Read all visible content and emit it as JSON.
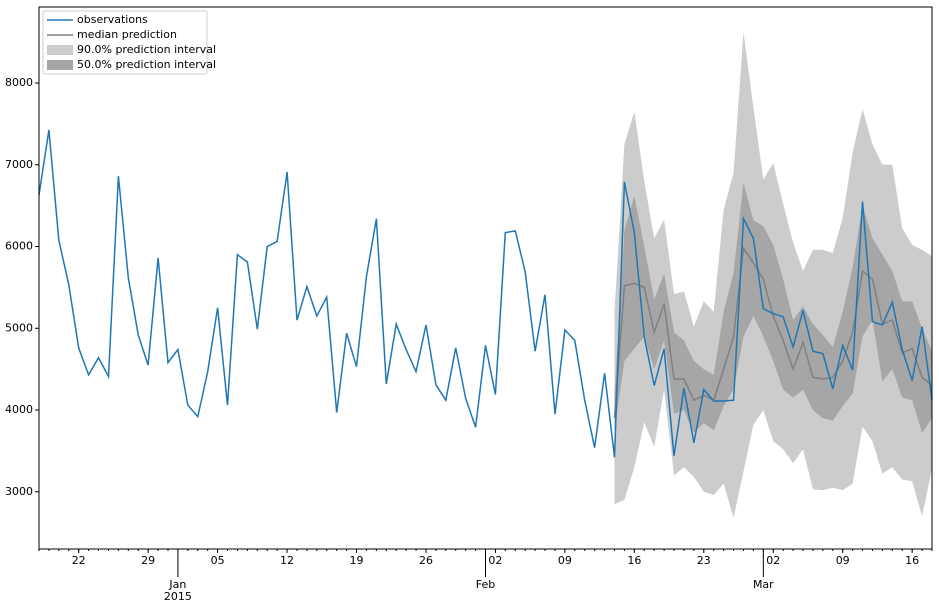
{
  "chart_data": {
    "type": "line",
    "x": [
      "2014-12-18",
      "2014-12-19",
      "2014-12-20",
      "2014-12-21",
      "2014-12-22",
      "2014-12-23",
      "2014-12-24",
      "2014-12-25",
      "2014-12-26",
      "2014-12-27",
      "2014-12-28",
      "2014-12-29",
      "2014-12-30",
      "2014-12-31",
      "2015-01-01",
      "2015-01-02",
      "2015-01-03",
      "2015-01-04",
      "2015-01-05",
      "2015-01-06",
      "2015-01-07",
      "2015-01-08",
      "2015-01-09",
      "2015-01-10",
      "2015-01-11",
      "2015-01-12",
      "2015-01-13",
      "2015-01-14",
      "2015-01-15",
      "2015-01-16",
      "2015-01-17",
      "2015-01-18",
      "2015-01-19",
      "2015-01-20",
      "2015-01-21",
      "2015-01-22",
      "2015-01-23",
      "2015-01-24",
      "2015-01-25",
      "2015-01-26",
      "2015-01-27",
      "2015-01-28",
      "2015-01-29",
      "2015-01-30",
      "2015-01-31",
      "2015-02-01",
      "2015-02-02",
      "2015-02-03",
      "2015-02-04",
      "2015-02-05",
      "2015-02-06",
      "2015-02-07",
      "2015-02-08",
      "2015-02-09",
      "2015-02-10",
      "2015-02-11",
      "2015-02-12",
      "2015-02-13",
      "2015-02-14",
      "2015-02-15",
      "2015-02-16",
      "2015-02-17",
      "2015-02-18",
      "2015-02-19",
      "2015-02-20",
      "2015-02-21",
      "2015-02-22",
      "2015-02-23",
      "2015-02-24",
      "2015-02-25",
      "2015-02-26",
      "2015-02-27",
      "2015-02-28",
      "2015-03-01",
      "2015-03-02",
      "2015-03-03",
      "2015-03-04",
      "2015-03-05",
      "2015-03-06",
      "2015-03-07",
      "2015-03-08",
      "2015-03-09",
      "2015-03-10",
      "2015-03-11",
      "2015-03-12",
      "2015-03-13",
      "2015-03-14",
      "2015-03-15",
      "2015-03-16",
      "2015-03-17",
      "2015-03-18"
    ],
    "series": [
      {
        "name": "observations",
        "color": "#1f77b4",
        "values": [
          6630,
          7425,
          6080,
          5530,
          4760,
          4430,
          4640,
          4410,
          6860,
          5620,
          4920,
          4550,
          5860,
          4580,
          4740,
          4060,
          3920,
          4470,
          5250,
          4060,
          5900,
          5810,
          4990,
          6000,
          6060,
          6910,
          5100,
          5510,
          5150,
          5380,
          3970,
          4940,
          4530,
          5630,
          6340,
          4320,
          5050,
          4740,
          4470,
          5040,
          4310,
          4120,
          4760,
          4140,
          3790,
          4790,
          4190,
          6170,
          6190,
          5690,
          4720,
          5410,
          3950,
          4980,
          4850,
          4120,
          3540,
          4450,
          3420,
          6790,
          6170,
          4890,
          4300,
          4750,
          3440,
          4270,
          3600,
          4250,
          4110,
          4110,
          4120,
          6340,
          6100,
          5240,
          5180,
          5140,
          4770,
          5220,
          4720,
          4690,
          4260,
          4790,
          4490,
          6550,
          5080,
          5040,
          5320,
          4740,
          4360,
          5020,
          4120
        ]
      }
    ],
    "forecast": {
      "x": [
        "2015-02-14",
        "2015-02-15",
        "2015-02-16",
        "2015-02-17",
        "2015-02-18",
        "2015-02-19",
        "2015-02-20",
        "2015-02-21",
        "2015-02-22",
        "2015-02-23",
        "2015-02-24",
        "2015-02-25",
        "2015-02-26",
        "2015-02-27",
        "2015-02-28",
        "2015-03-01",
        "2015-03-02",
        "2015-03-03",
        "2015-03-04",
        "2015-03-05",
        "2015-03-06",
        "2015-03-07",
        "2015-03-08",
        "2015-03-09",
        "2015-03-10",
        "2015-03-11",
        "2015-03-12",
        "2015-03-13",
        "2015-03-14",
        "2015-03-15",
        "2015-03-16",
        "2015-03-17",
        "2015-03-18"
      ],
      "median": {
        "name": "median prediction",
        "color": "#808080",
        "values": [
          3900,
          5520,
          5550,
          5500,
          4950,
          5300,
          4380,
          4380,
          4120,
          4180,
          4120,
          4500,
          4900,
          5980,
          5800,
          5600,
          5150,
          4850,
          4500,
          4830,
          4400,
          4380,
          4400,
          4600,
          4950,
          5700,
          5600,
          5050,
          5100,
          4700,
          4750,
          4400,
          4300
        ]
      },
      "intervals": [
        {
          "name": "90.0% prediction interval",
          "color": "#cccccc",
          "lower": [
            2850,
            2900,
            3300,
            3850,
            3550,
            4250,
            3200,
            3300,
            3180,
            3000,
            2960,
            3100,
            2680,
            3250,
            3820,
            4000,
            3620,
            3520,
            3350,
            3520,
            3030,
            3020,
            3050,
            3020,
            3100,
            3800,
            3620,
            3220,
            3300,
            3150,
            3130,
            2700,
            3280
          ],
          "upper": [
            5200,
            7250,
            7650,
            6800,
            6100,
            6330,
            5420,
            5450,
            5020,
            5330,
            5200,
            6450,
            6900,
            8620,
            7700,
            6820,
            7020,
            6520,
            6050,
            5700,
            5960,
            5960,
            5920,
            6350,
            7150,
            7680,
            7250,
            7000,
            7000,
            6220,
            6020,
            5960,
            5880
          ]
        },
        {
          "name": "50.0% prediction interval",
          "color": "#a6a6a6",
          "lower": [
            3750,
            4600,
            4750,
            4900,
            4500,
            4850,
            3950,
            4000,
            3720,
            3840,
            3750,
            4050,
            4250,
            4900,
            5150,
            4900,
            4600,
            4250,
            4150,
            4250,
            4000,
            3900,
            3870,
            4050,
            4200,
            4900,
            5100,
            4350,
            4500,
            4150,
            4120,
            3720,
            3900
          ],
          "upper": [
            4200,
            6200,
            6620,
            6000,
            5350,
            5670,
            4950,
            4850,
            4600,
            4500,
            4430,
            5200,
            5680,
            6780,
            6320,
            6250,
            6020,
            5600,
            5100,
            5270,
            5050,
            4920,
            4770,
            5200,
            5750,
            6500,
            6100,
            5900,
            5700,
            5330,
            5330,
            5000,
            4720
          ]
        }
      ]
    },
    "xlim": [
      "2014-12-18",
      "2015-03-18"
    ],
    "xticks": [
      {
        "value": "2014-12-22",
        "label": "22"
      },
      {
        "value": "2014-12-29",
        "label": "29"
      },
      {
        "value": "2015-01-05",
        "label": "05"
      },
      {
        "value": "2015-01-12",
        "label": "12"
      },
      {
        "value": "2015-01-19",
        "label": "19"
      },
      {
        "value": "2015-01-26",
        "label": "26"
      },
      {
        "value": "2015-02-02",
        "label": "02"
      },
      {
        "value": "2015-02-09",
        "label": "09"
      },
      {
        "value": "2015-02-16",
        "label": "16"
      },
      {
        "value": "2015-02-23",
        "label": "23"
      },
      {
        "value": "2015-03-02",
        "label": "02"
      },
      {
        "value": "2015-03-09",
        "label": "09"
      },
      {
        "value": "2015-03-16",
        "label": "16"
      }
    ],
    "xticks_major": [
      {
        "value": "2015-01-01",
        "label": "Jan",
        "sublabel": "2015"
      },
      {
        "value": "2015-02-01",
        "label": "Feb"
      },
      {
        "value": "2015-03-01",
        "label": "Mar"
      }
    ],
    "ylim": [
      2300,
      8930
    ],
    "yticks": [
      3000,
      4000,
      5000,
      6000,
      7000,
      8000
    ],
    "legend": "upper left"
  }
}
